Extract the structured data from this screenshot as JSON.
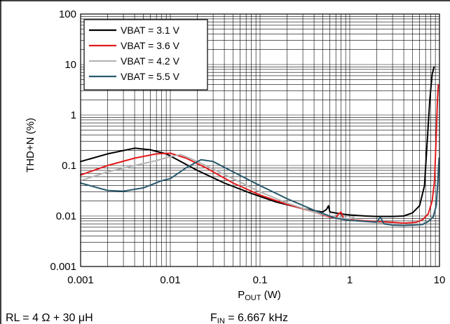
{
  "chart_data": {
    "type": "line",
    "xscale": "log",
    "yscale": "log",
    "xlim": [
      0.001,
      10
    ],
    "ylim": [
      0.001,
      100
    ],
    "x_ticks": [
      "0.001",
      "0.01",
      "0.1",
      "1",
      "10"
    ],
    "y_ticks": [
      "0.001",
      "0.01",
      "0.1",
      "1",
      "10",
      "100"
    ],
    "ylabel": "THD+N (%)",
    "xlabel_main": "P",
    "xlabel_sub": "OUT",
    "xlabel_unit": " (W)",
    "grid": true,
    "legend_position": "top-left",
    "series": [
      {
        "name": "VBAT = 3.1 V",
        "color": "#000000",
        "points": [
          [
            0.001,
            0.12
          ],
          [
            0.002,
            0.17
          ],
          [
            0.004,
            0.22
          ],
          [
            0.006,
            0.205
          ],
          [
            0.009,
            0.17
          ],
          [
            0.012,
            0.13
          ],
          [
            0.02,
            0.08
          ],
          [
            0.04,
            0.045
          ],
          [
            0.08,
            0.028
          ],
          [
            0.15,
            0.019
          ],
          [
            0.3,
            0.014
          ],
          [
            0.5,
            0.012
          ],
          [
            0.55,
            0.0135
          ],
          [
            0.58,
            0.016
          ],
          [
            0.6,
            0.012
          ],
          [
            0.8,
            0.011
          ],
          [
            1.0,
            0.0105
          ],
          [
            1.5,
            0.01
          ],
          [
            2.0,
            0.0098
          ],
          [
            3.0,
            0.0098
          ],
          [
            4.0,
            0.01
          ],
          [
            5.0,
            0.0115
          ],
          [
            6.0,
            0.016
          ],
          [
            6.8,
            0.04
          ],
          [
            7.3,
            0.3
          ],
          [
            7.8,
            2.0
          ],
          [
            8.3,
            6.5
          ],
          [
            8.7,
            9.0
          ]
        ]
      },
      {
        "name": "VBAT = 3.6 V",
        "color": "#e31a1c",
        "points": [
          [
            0.001,
            0.065
          ],
          [
            0.002,
            0.1
          ],
          [
            0.004,
            0.14
          ],
          [
            0.007,
            0.17
          ],
          [
            0.01,
            0.175
          ],
          [
            0.015,
            0.14
          ],
          [
            0.025,
            0.09
          ],
          [
            0.05,
            0.045
          ],
          [
            0.1,
            0.026
          ],
          [
            0.2,
            0.017
          ],
          [
            0.4,
            0.012
          ],
          [
            0.6,
            0.0095
          ],
          [
            0.7,
            0.0092
          ],
          [
            0.75,
            0.011
          ],
          [
            0.8,
            0.012
          ],
          [
            0.85,
            0.009
          ],
          [
            1.0,
            0.0085
          ],
          [
            1.5,
            0.008
          ],
          [
            2.0,
            0.0078
          ],
          [
            3.0,
            0.0075
          ],
          [
            4.0,
            0.0072
          ],
          [
            5.5,
            0.0075
          ],
          [
            6.5,
            0.0085
          ],
          [
            7.5,
            0.011
          ],
          [
            8.3,
            0.02
          ],
          [
            8.8,
            0.05
          ],
          [
            9.2,
            0.4
          ],
          [
            9.5,
            2.0
          ],
          [
            9.7,
            4.0
          ]
        ]
      },
      {
        "name": "VBAT = 4.2 V",
        "color": "#b4b4b4",
        "points": [
          [
            0.001,
            0.05
          ],
          [
            0.002,
            0.075
          ],
          [
            0.004,
            0.1
          ],
          [
            0.007,
            0.125
          ],
          [
            0.01,
            0.15
          ],
          [
            0.013,
            0.165
          ],
          [
            0.02,
            0.12
          ],
          [
            0.03,
            0.085
          ],
          [
            0.05,
            0.055
          ],
          [
            0.1,
            0.03
          ],
          [
            0.2,
            0.018
          ],
          [
            0.4,
            0.012
          ],
          [
            0.7,
            0.0092
          ],
          [
            1.0,
            0.0088
          ],
          [
            1.1,
            0.0095
          ],
          [
            1.2,
            0.008
          ],
          [
            1.5,
            0.0078
          ],
          [
            2.0,
            0.0074
          ],
          [
            3.0,
            0.007
          ],
          [
            4.0,
            0.0068
          ],
          [
            5.0,
            0.0068
          ],
          [
            6.5,
            0.007
          ],
          [
            7.5,
            0.008
          ],
          [
            8.5,
            0.01
          ],
          [
            9.2,
            0.016
          ],
          [
            9.6,
            0.04
          ],
          [
            9.9,
            0.11
          ]
        ]
      },
      {
        "name": "VBAT = 5.5 V",
        "color": "#2a5a6e",
        "points": [
          [
            0.001,
            0.045
          ],
          [
            0.002,
            0.032
          ],
          [
            0.003,
            0.031
          ],
          [
            0.005,
            0.036
          ],
          [
            0.008,
            0.05
          ],
          [
            0.01,
            0.055
          ],
          [
            0.015,
            0.09
          ],
          [
            0.022,
            0.13
          ],
          [
            0.03,
            0.12
          ],
          [
            0.05,
            0.075
          ],
          [
            0.1,
            0.04
          ],
          [
            0.2,
            0.022
          ],
          [
            0.4,
            0.013
          ],
          [
            0.7,
            0.009
          ],
          [
            1.0,
            0.0082
          ],
          [
            1.5,
            0.0078
          ],
          [
            2.0,
            0.0076
          ],
          [
            2.2,
            0.0095
          ],
          [
            2.4,
            0.007
          ],
          [
            3.0,
            0.0066
          ],
          [
            4.0,
            0.0065
          ],
          [
            5.0,
            0.0066
          ],
          [
            6.5,
            0.0068
          ],
          [
            7.5,
            0.0078
          ],
          [
            8.5,
            0.0095
          ],
          [
            9.2,
            0.016
          ],
          [
            9.6,
            0.05
          ],
          [
            9.9,
            0.14
          ]
        ]
      }
    ]
  },
  "footnote": {
    "left": "RL = 4 Ω + 30 μH",
    "right_main": "F",
    "right_sub": "IN",
    "right_value": " = 6.667 kHz"
  }
}
